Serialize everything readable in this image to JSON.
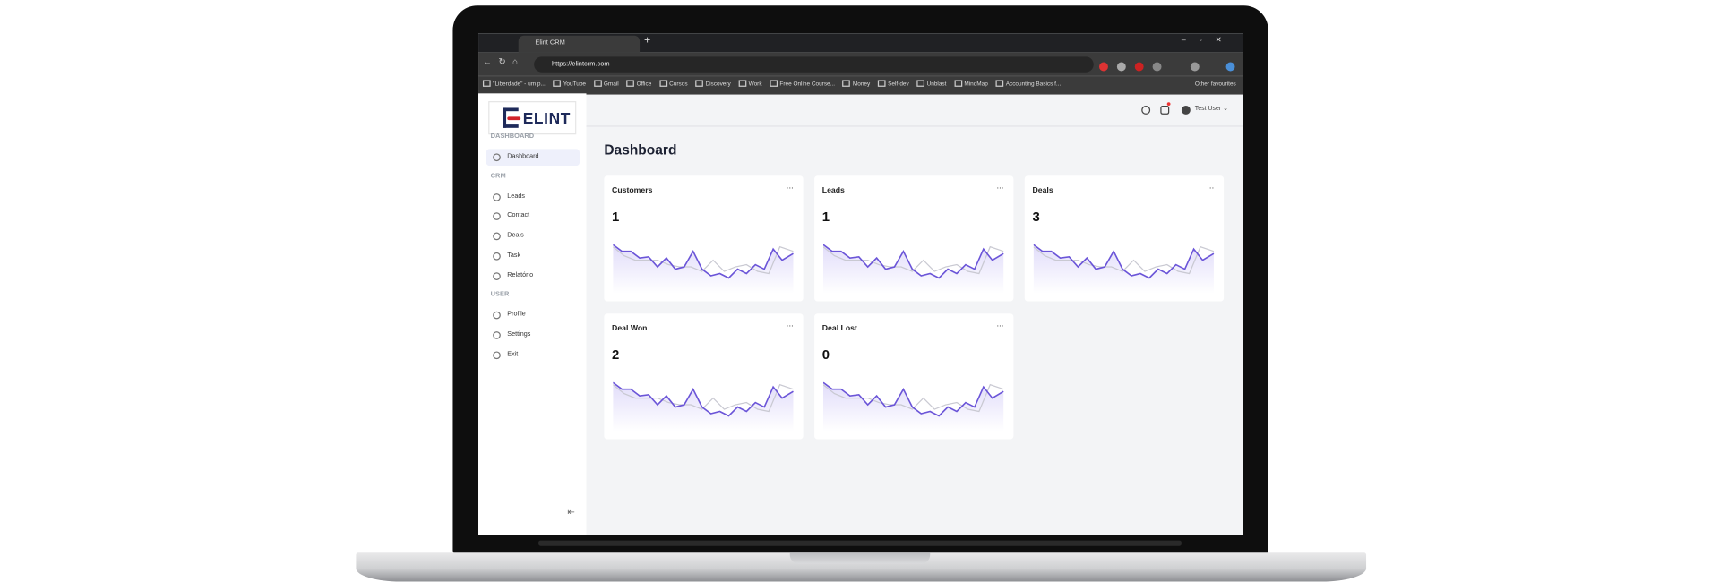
{
  "browser": {
    "tab_title": "Elint CRM",
    "url": "https://elintcrm.com",
    "bookmarks": [
      "\"Liberdade\" - um p...",
      "YouTube",
      "Gmail",
      "Office",
      "Cursos",
      "Discovery",
      "Work",
      "Free Online Course...",
      "Money",
      "Self-dev",
      "Unblast",
      "MindMap",
      "Accounting Basics f..."
    ],
    "other_bookmarks": "Other favourites"
  },
  "sidebar": {
    "logo": "ELINT",
    "sections": [
      {
        "heading": "DASHBOARD",
        "items": [
          "Dashboard"
        ]
      },
      {
        "heading": "CRM",
        "items": [
          "Leads",
          "Contact",
          "Deals",
          "Task",
          "Relatório"
        ]
      },
      {
        "heading": "USER",
        "items": [
          "Profile",
          "Settings",
          "Exit"
        ]
      }
    ]
  },
  "header": {
    "user": "Test User"
  },
  "page_title": "Dashboard",
  "cards": [
    {
      "title": "Customers",
      "value": 1
    },
    {
      "title": "Leads",
      "value": 1
    },
    {
      "title": "Deals",
      "value": 3
    },
    {
      "title": "Deal Won",
      "value": 2
    },
    {
      "title": "Deal Lost",
      "value": 0
    }
  ]
}
